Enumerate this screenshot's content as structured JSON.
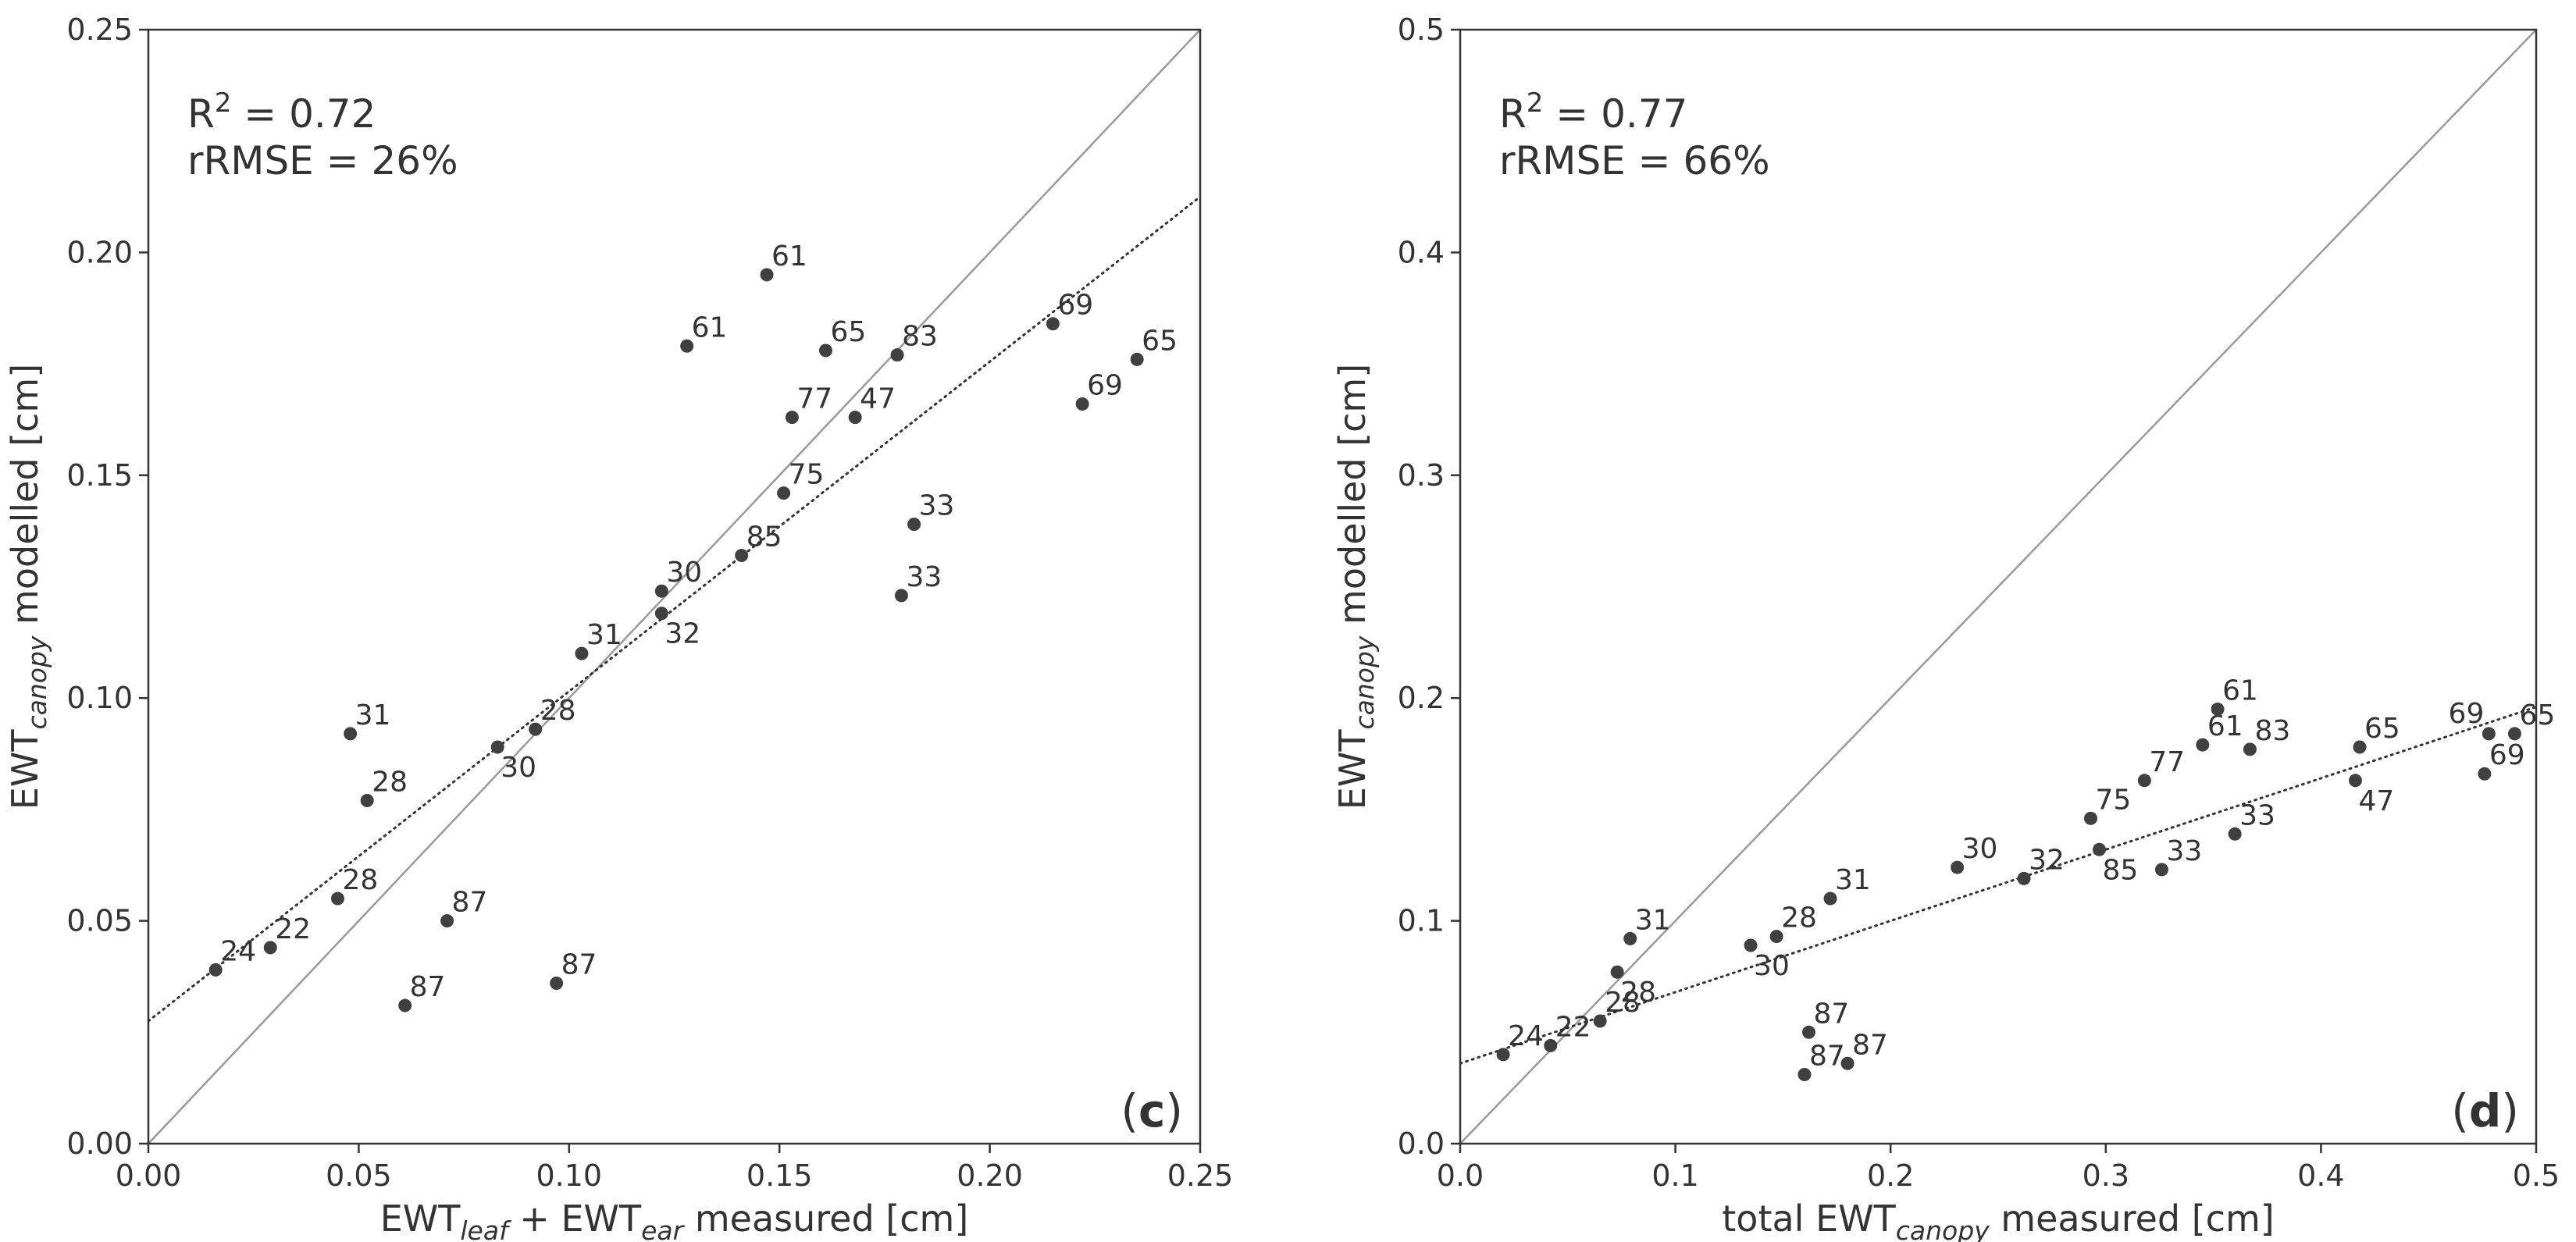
{
  "chart_data": [
    {
      "type": "scatter",
      "panel_tag": "c",
      "xlim": [
        0,
        0.25
      ],
      "ylim": [
        0,
        0.25
      ],
      "xticks": [
        0.0,
        0.05,
        0.1,
        0.15,
        0.2,
        0.25
      ],
      "yticks": [
        0.0,
        0.05,
        0.1,
        0.15,
        0.2,
        0.25
      ],
      "xtick_labels": [
        "0.00",
        "0.05",
        "0.10",
        "0.15",
        "0.20",
        "0.25"
      ],
      "ytick_labels": [
        "0.00",
        "0.05",
        "0.10",
        "0.15",
        "0.20",
        "0.25"
      ],
      "xlabel": {
        "parts": [
          [
            "EWT",
            ""
          ],
          [
            "leaf",
            "sub"
          ],
          [
            " + EWT",
            ""
          ],
          [
            "ear",
            "sub"
          ],
          [
            " measured [cm]",
            ""
          ]
        ]
      },
      "ylabel": {
        "parts": [
          [
            "EWT",
            ""
          ],
          [
            "canopy",
            "sub"
          ],
          [
            " modelled [cm]",
            ""
          ]
        ]
      },
      "stats": {
        "r2_prefix": "R",
        "r2_sup": "2",
        "r2_rest": " = 0.72",
        "rrmse": "rRMSE = 26%"
      },
      "one_to_one_line": true,
      "fit_line": {
        "intercept": 0.0275,
        "slope": 0.74
      },
      "points": [
        {
          "x": 0.016,
          "y": 0.039,
          "label": "24",
          "lpos": "right"
        },
        {
          "x": 0.029,
          "y": 0.044,
          "label": "22",
          "lpos": "right"
        },
        {
          "x": 0.045,
          "y": 0.055,
          "label": "28",
          "lpos": "right"
        },
        {
          "x": 0.048,
          "y": 0.092,
          "label": "31",
          "lpos": "right"
        },
        {
          "x": 0.052,
          "y": 0.077,
          "label": "28",
          "lpos": "right"
        },
        {
          "x": 0.061,
          "y": 0.031,
          "label": "87",
          "lpos": "right"
        },
        {
          "x": 0.071,
          "y": 0.05,
          "label": "87",
          "lpos": "right"
        },
        {
          "x": 0.083,
          "y": 0.089,
          "label": "30",
          "lpos": "below"
        },
        {
          "x": 0.092,
          "y": 0.093,
          "label": "28",
          "lpos": "right"
        },
        {
          "x": 0.097,
          "y": 0.036,
          "label": "87",
          "lpos": "right"
        },
        {
          "x": 0.103,
          "y": 0.11,
          "label": "31",
          "lpos": "right"
        },
        {
          "x": 0.122,
          "y": 0.124,
          "label": "30",
          "lpos": "right"
        },
        {
          "x": 0.122,
          "y": 0.119,
          "label": "32",
          "lpos": "below"
        },
        {
          "x": 0.128,
          "y": 0.179,
          "label": "61",
          "lpos": "right"
        },
        {
          "x": 0.141,
          "y": 0.132,
          "label": "85",
          "lpos": "right"
        },
        {
          "x": 0.147,
          "y": 0.195,
          "label": "61",
          "lpos": "right"
        },
        {
          "x": 0.151,
          "y": 0.146,
          "label": "75",
          "lpos": "right"
        },
        {
          "x": 0.153,
          "y": 0.163,
          "label": "77",
          "lpos": "right"
        },
        {
          "x": 0.161,
          "y": 0.178,
          "label": "65",
          "lpos": "right"
        },
        {
          "x": 0.168,
          "y": 0.163,
          "label": "47",
          "lpos": "right"
        },
        {
          "x": 0.178,
          "y": 0.177,
          "label": "83",
          "lpos": "right"
        },
        {
          "x": 0.179,
          "y": 0.123,
          "label": "33",
          "lpos": "right"
        },
        {
          "x": 0.182,
          "y": 0.139,
          "label": "33",
          "lpos": "right"
        },
        {
          "x": 0.215,
          "y": 0.184,
          "label": "69",
          "lpos": "right"
        },
        {
          "x": 0.222,
          "y": 0.166,
          "label": "69",
          "lpos": "right"
        },
        {
          "x": 0.235,
          "y": 0.176,
          "label": "65",
          "lpos": "right"
        }
      ]
    },
    {
      "type": "scatter",
      "panel_tag": "d",
      "xlim": [
        0,
        0.5
      ],
      "ylim": [
        0,
        0.5
      ],
      "xticks": [
        0.0,
        0.1,
        0.2,
        0.3,
        0.4,
        0.5
      ],
      "yticks": [
        0.0,
        0.1,
        0.2,
        0.3,
        0.4,
        0.5
      ],
      "xtick_labels": [
        "0.0",
        "0.1",
        "0.2",
        "0.3",
        "0.4",
        "0.5"
      ],
      "ytick_labels": [
        "0.0",
        "0.1",
        "0.2",
        "0.3",
        "0.4",
        "0.5"
      ],
      "xlabel": {
        "parts": [
          [
            "total EWT",
            ""
          ],
          [
            "canopy",
            "sub"
          ],
          [
            " measured [cm]",
            ""
          ]
        ]
      },
      "ylabel": {
        "parts": [
          [
            "EWT",
            ""
          ],
          [
            "canopy",
            "sub"
          ],
          [
            " modelled [cm]",
            ""
          ]
        ]
      },
      "stats": {
        "r2_prefix": "R",
        "r2_sup": "2",
        "r2_rest": " = 0.77",
        "rrmse": "rRMSE = 66%"
      },
      "one_to_one_line": true,
      "fit_line": {
        "intercept": 0.036,
        "slope": 0.32
      },
      "points": [
        {
          "x": 0.02,
          "y": 0.04,
          "label": "24",
          "lpos": "right"
        },
        {
          "x": 0.042,
          "y": 0.044,
          "label": "22",
          "lpos": "right"
        },
        {
          "x": 0.065,
          "y": 0.055,
          "label": "28",
          "lpos": "right"
        },
        {
          "x": 0.073,
          "y": 0.077,
          "label": "28",
          "lpos": "below"
        },
        {
          "x": 0.079,
          "y": 0.092,
          "label": "31",
          "lpos": "right"
        },
        {
          "x": 0.135,
          "y": 0.089,
          "label": "30",
          "lpos": "below"
        },
        {
          "x": 0.147,
          "y": 0.093,
          "label": "28",
          "lpos": "right"
        },
        {
          "x": 0.16,
          "y": 0.031,
          "label": "87",
          "lpos": "right"
        },
        {
          "x": 0.162,
          "y": 0.05,
          "label": "87",
          "lpos": "right"
        },
        {
          "x": 0.18,
          "y": 0.036,
          "label": "87",
          "lpos": "right"
        },
        {
          "x": 0.172,
          "y": 0.11,
          "label": "31",
          "lpos": "right"
        },
        {
          "x": 0.231,
          "y": 0.124,
          "label": "30",
          "lpos": "right"
        },
        {
          "x": 0.262,
          "y": 0.119,
          "label": "32",
          "lpos": "right"
        },
        {
          "x": 0.293,
          "y": 0.146,
          "label": "75",
          "lpos": "right"
        },
        {
          "x": 0.297,
          "y": 0.132,
          "label": "85",
          "lpos": "below"
        },
        {
          "x": 0.318,
          "y": 0.163,
          "label": "77",
          "lpos": "right"
        },
        {
          "x": 0.326,
          "y": 0.123,
          "label": "33",
          "lpos": "right"
        },
        {
          "x": 0.345,
          "y": 0.179,
          "label": "61",
          "lpos": "right"
        },
        {
          "x": 0.352,
          "y": 0.195,
          "label": "61",
          "lpos": "right"
        },
        {
          "x": 0.36,
          "y": 0.139,
          "label": "33",
          "lpos": "right"
        },
        {
          "x": 0.367,
          "y": 0.177,
          "label": "83",
          "lpos": "right"
        },
        {
          "x": 0.416,
          "y": 0.163,
          "label": "47",
          "lpos": "below"
        },
        {
          "x": 0.418,
          "y": 0.178,
          "label": "65",
          "lpos": "right"
        },
        {
          "x": 0.476,
          "y": 0.166,
          "label": "69",
          "lpos": "right"
        },
        {
          "x": 0.478,
          "y": 0.184,
          "label": "69",
          "lpos": "above-left"
        },
        {
          "x": 0.49,
          "y": 0.184,
          "label": "65",
          "lpos": "right"
        }
      ]
    }
  ]
}
